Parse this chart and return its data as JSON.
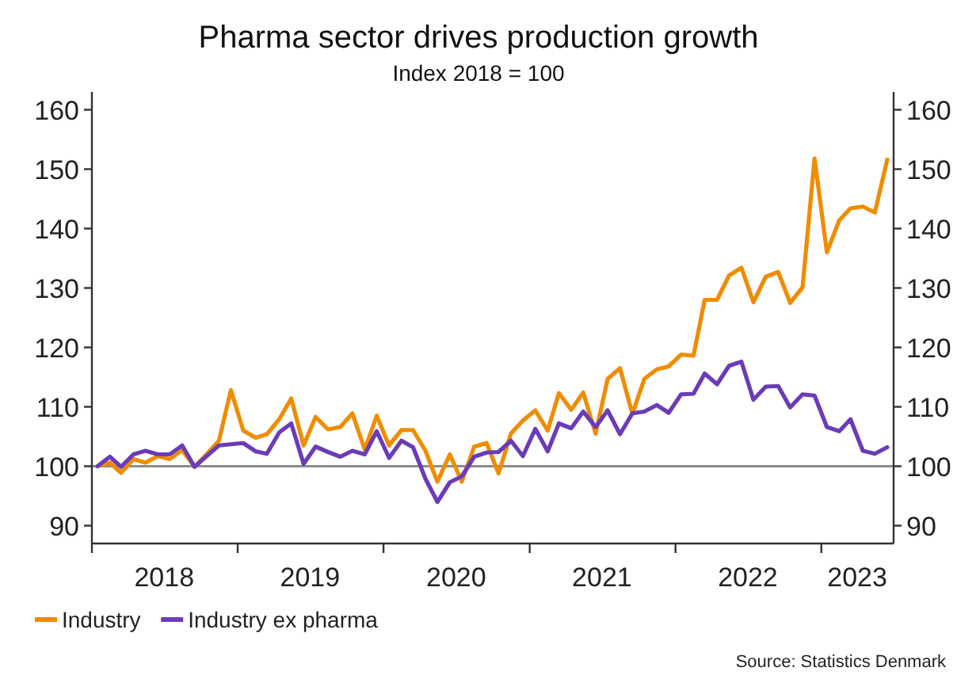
{
  "chart_data": {
    "type": "line",
    "title": "Pharma sector drives production growth",
    "subtitle": "Index 2018 = 100",
    "x": [
      "2018-01-15",
      "2018-02-15",
      "2018-03-15",
      "2018-04-15",
      "2018-05-15",
      "2018-06-15",
      "2018-07-15",
      "2018-08-15",
      "2018-09-15",
      "2018-10-15",
      "2018-11-15",
      "2018-12-15",
      "2019-01-15",
      "2019-02-15",
      "2019-03-15",
      "2019-04-15",
      "2019-05-15",
      "2019-06-15",
      "2019-07-15",
      "2019-08-15",
      "2019-09-15",
      "2019-10-15",
      "2019-11-15",
      "2019-12-15",
      "2020-01-15",
      "2020-02-15",
      "2020-03-15",
      "2020-04-15",
      "2020-05-15",
      "2020-06-15",
      "2020-07-15",
      "2020-08-15",
      "2020-09-15",
      "2020-10-15",
      "2020-11-15",
      "2020-12-15",
      "2021-01-15",
      "2021-02-15",
      "2021-03-15",
      "2021-04-15",
      "2021-05-15",
      "2021-06-15",
      "2021-07-15",
      "2021-08-15",
      "2021-09-15",
      "2021-10-15",
      "2021-11-15",
      "2021-12-15",
      "2022-01-15",
      "2022-02-15",
      "2022-03-15",
      "2022-04-15",
      "2022-05-15",
      "2022-06-15",
      "2022-07-15",
      "2022-08-15",
      "2022-09-15",
      "2022-10-15",
      "2022-11-15",
      "2022-12-15",
      "2023-01-15",
      "2023-02-15",
      "2023-03-15",
      "2023-04-15",
      "2023-05-15",
      "2023-06-15"
    ],
    "series": [
      {
        "name": "Industry",
        "color": "#f08c00",
        "values": [
          100,
          100.6,
          98.9,
          101.2,
          100.6,
          101.7,
          101.2,
          102.7,
          99.9,
          102,
          104.3,
          112.8,
          106,
          104.8,
          105.4,
          107.9,
          111.4,
          103.5,
          108.3,
          106.2,
          106.6,
          108.9,
          102.8,
          108.5,
          103.5,
          106.1,
          106.1,
          102.6,
          97.4,
          102,
          97.4,
          103.3,
          103.9,
          98.8,
          105.5,
          107.7,
          109.4,
          106,
          112.3,
          109.5,
          112.4,
          105.5,
          114.7,
          116.5,
          108.8,
          114.7,
          116.3,
          116.8,
          118.8,
          118.6,
          128,
          128,
          132.1,
          133.4,
          127.6,
          131.9,
          132.7,
          127.5,
          130.1,
          151.8,
          136,
          141.4,
          143.4,
          143.7,
          142.7,
          151.6
        ]
      },
      {
        "name": "Industry ex pharma",
        "color": "#6a3cb8",
        "values": [
          100,
          101.6,
          99.9,
          102,
          102.6,
          102,
          102,
          103.5,
          99.9,
          101.7,
          103.5,
          103.7,
          103.9,
          102.5,
          102.1,
          105.7,
          107.2,
          100.4,
          103.3,
          102.4,
          101.6,
          102.6,
          102,
          105.9,
          101.4,
          104.3,
          103.2,
          97.9,
          94,
          97.3,
          98.3,
          101.6,
          102.3,
          102.4,
          104.3,
          101.7,
          106.3,
          102.5,
          107.2,
          106.4,
          109.2,
          106.6,
          109.4,
          105.4,
          108.9,
          109.2,
          110.3,
          109,
          112.1,
          112.2,
          115.6,
          113.8,
          116.9,
          117.6,
          111.2,
          113.4,
          113.5,
          109.9,
          112.1,
          111.9,
          106.6,
          105.9,
          107.9,
          102.6,
          102.1,
          103.2
        ]
      }
    ],
    "xlim": [
      "2018-01-01",
      "2023-07-01"
    ],
    "xticks": [
      {
        "value": "2018-01-01",
        "label": null
      },
      {
        "value": "2018-07-01",
        "label": "2018"
      },
      {
        "value": "2019-01-01",
        "label": null
      },
      {
        "value": "2019-07-01",
        "label": "2019"
      },
      {
        "value": "2020-01-01",
        "label": null
      },
      {
        "value": "2020-07-01",
        "label": "2020"
      },
      {
        "value": "2021-01-01",
        "label": null
      },
      {
        "value": "2021-07-01",
        "label": "2021"
      },
      {
        "value": "2022-01-01",
        "label": null
      },
      {
        "value": "2022-07-01",
        "label": "2022"
      },
      {
        "value": "2023-01-01",
        "label": null
      },
      {
        "value": "2023-04-01",
        "label": "2023"
      }
    ],
    "ylim": [
      87,
      163
    ],
    "yticks": [
      90,
      100,
      110,
      120,
      130,
      140,
      150,
      160
    ],
    "y2lim": [
      87,
      163
    ],
    "y2ticks": [
      90,
      100,
      110,
      120,
      130,
      140,
      150,
      160
    ],
    "ref_lines": [
      {
        "axis": "y",
        "value": 100,
        "color": "#8c8c8c"
      }
    ],
    "legend": "bottom left",
    "annotations": [
      "Source: Statistics Denmark"
    ]
  }
}
